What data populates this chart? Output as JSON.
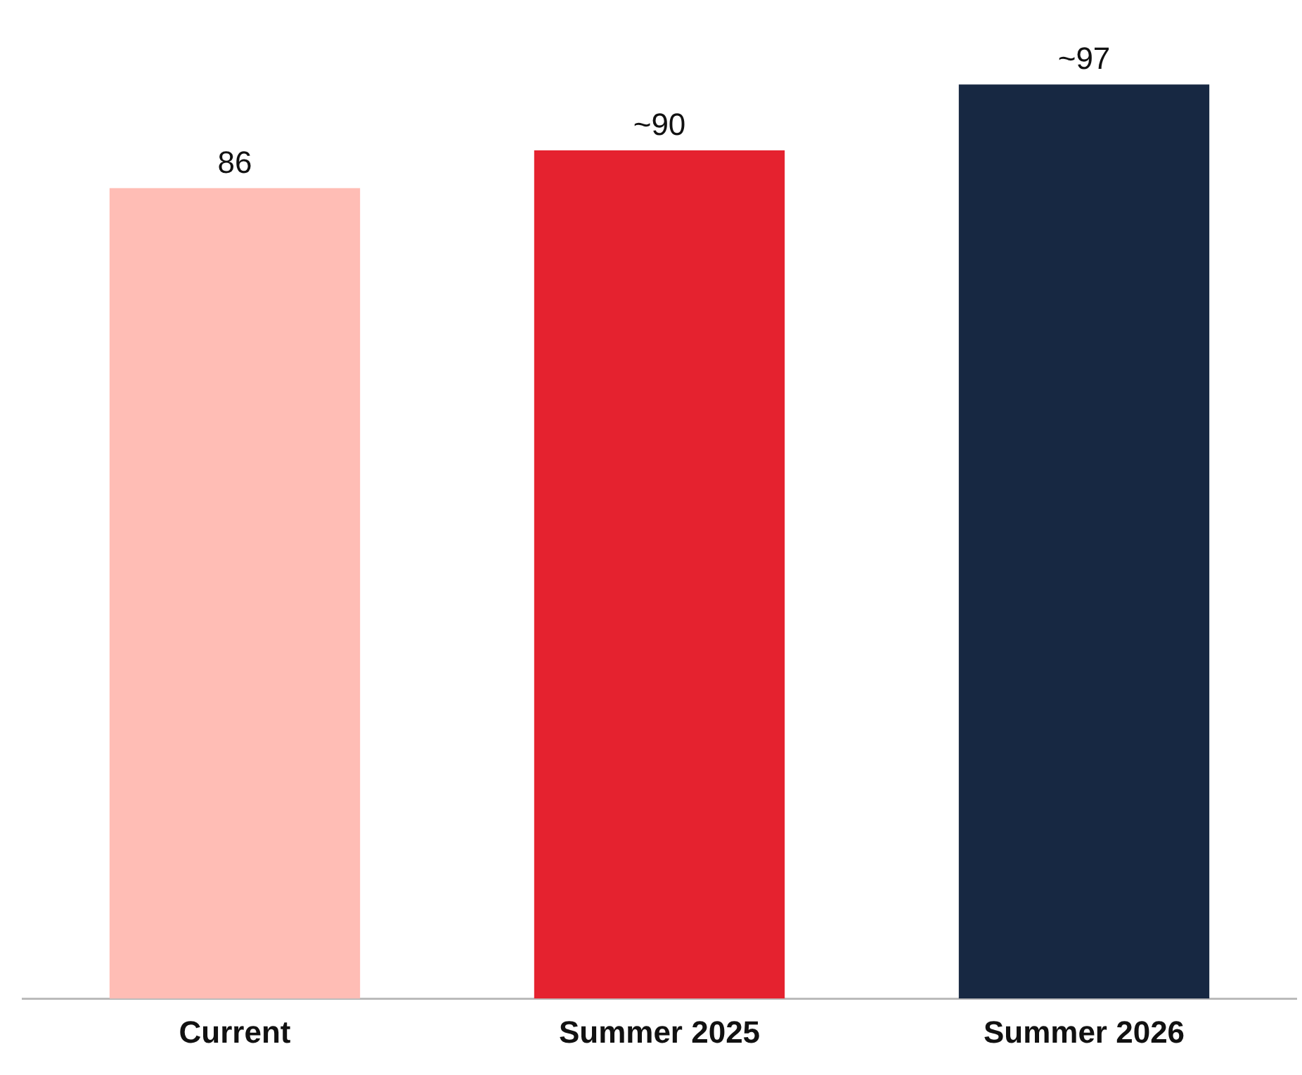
{
  "chart_data": {
    "type": "bar",
    "categories": [
      "Current",
      "Summer 2025",
      "Summer 2026"
    ],
    "values": [
      86,
      90,
      97
    ],
    "colors": [
      "#ffbdb5",
      "#e5222f",
      "#172842"
    ],
    "value_labels": [
      "86",
      "~90",
      "~97"
    ],
    "grid": false,
    "legend": false,
    "tick_labels": "x"
  }
}
